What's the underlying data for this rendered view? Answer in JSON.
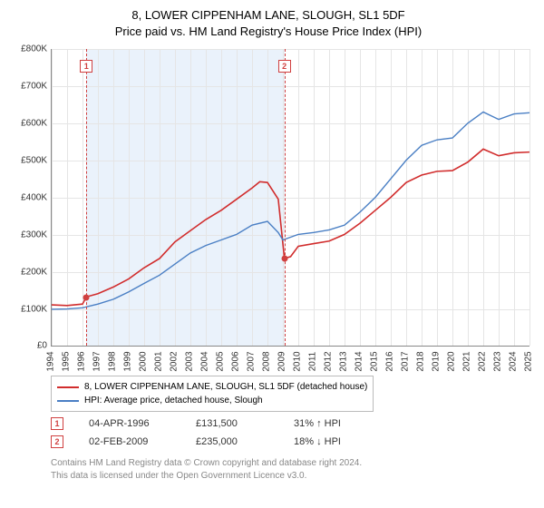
{
  "title": "8, LOWER CIPPENHAM LANE, SLOUGH, SL1 5DF",
  "subtitle": "Price paid vs. HM Land Registry's House Price Index (HPI)",
  "chart": {
    "type": "line",
    "background_color": "#ffffff",
    "grid_color": "#e5e5e5",
    "band_color": "#eaf2fb",
    "axis_color": "#888888",
    "y": {
      "min": 0,
      "max": 800000,
      "tick_step": 100000,
      "tick_labels": [
        "£0",
        "£100K",
        "£200K",
        "£300K",
        "£400K",
        "£500K",
        "£600K",
        "£700K",
        "£800K"
      ],
      "label_fontsize": 10
    },
    "x": {
      "min": 1994,
      "max": 2025,
      "ticks": [
        1994,
        1995,
        1996,
        1997,
        1998,
        1999,
        2000,
        2001,
        2002,
        2003,
        2004,
        2005,
        2006,
        2007,
        2008,
        2009,
        2010,
        2011,
        2012,
        2013,
        2014,
        2015,
        2016,
        2017,
        2018,
        2019,
        2020,
        2021,
        2022,
        2023,
        2024,
        2025
      ],
      "label_fontsize": 10
    },
    "band": {
      "start": 1996.25,
      "end": 2009.1
    },
    "markers": [
      {
        "num": "1",
        "x": 1996.25,
        "y": 131500
      },
      {
        "num": "2",
        "x": 2009.1,
        "y": 235000
      }
    ],
    "series": [
      {
        "name": "price_paid",
        "color": "#d12d2d",
        "line_width": 1.6,
        "label": "8, LOWER CIPPENHAM LANE, SLOUGH, SL1 5DF (detached house)",
        "points": [
          [
            1994,
            110000
          ],
          [
            1995,
            108000
          ],
          [
            1996,
            112000
          ],
          [
            1996.25,
            131500
          ],
          [
            1997,
            140000
          ],
          [
            1998,
            158000
          ],
          [
            1999,
            180000
          ],
          [
            2000,
            210000
          ],
          [
            2001,
            235000
          ],
          [
            2002,
            280000
          ],
          [
            2003,
            310000
          ],
          [
            2004,
            340000
          ],
          [
            2005,
            365000
          ],
          [
            2006,
            395000
          ],
          [
            2007,
            425000
          ],
          [
            2007.5,
            442000
          ],
          [
            2008,
            440000
          ],
          [
            2008.7,
            395000
          ],
          [
            2009.1,
            235000
          ],
          [
            2009.5,
            240000
          ],
          [
            2010,
            268000
          ],
          [
            2011,
            275000
          ],
          [
            2012,
            282000
          ],
          [
            2013,
            300000
          ],
          [
            2014,
            330000
          ],
          [
            2015,
            365000
          ],
          [
            2016,
            400000
          ],
          [
            2017,
            440000
          ],
          [
            2018,
            460000
          ],
          [
            2019,
            470000
          ],
          [
            2020,
            472000
          ],
          [
            2021,
            495000
          ],
          [
            2022,
            530000
          ],
          [
            2023,
            512000
          ],
          [
            2024,
            520000
          ],
          [
            2025,
            522000
          ]
        ]
      },
      {
        "name": "hpi",
        "color": "#4a7fc4",
        "line_width": 1.4,
        "label": "HPI: Average price, detached house, Slough",
        "points": [
          [
            1994,
            98000
          ],
          [
            1995,
            99000
          ],
          [
            1996,
            102000
          ],
          [
            1997,
            112000
          ],
          [
            1998,
            125000
          ],
          [
            1999,
            145000
          ],
          [
            2000,
            168000
          ],
          [
            2001,
            190000
          ],
          [
            2002,
            220000
          ],
          [
            2003,
            250000
          ],
          [
            2004,
            270000
          ],
          [
            2005,
            285000
          ],
          [
            2006,
            300000
          ],
          [
            2007,
            325000
          ],
          [
            2008,
            335000
          ],
          [
            2008.7,
            305000
          ],
          [
            2009,
            285000
          ],
          [
            2010,
            300000
          ],
          [
            2011,
            305000
          ],
          [
            2012,
            312000
          ],
          [
            2013,
            325000
          ],
          [
            2014,
            360000
          ],
          [
            2015,
            400000
          ],
          [
            2016,
            450000
          ],
          [
            2017,
            500000
          ],
          [
            2018,
            540000
          ],
          [
            2019,
            555000
          ],
          [
            2020,
            560000
          ],
          [
            2021,
            600000
          ],
          [
            2022,
            630000
          ],
          [
            2023,
            610000
          ],
          [
            2024,
            625000
          ],
          [
            2025,
            628000
          ]
        ]
      }
    ]
  },
  "legend": {
    "series1": "8, LOWER CIPPENHAM LANE, SLOUGH, SL1 5DF (detached house)",
    "series2": "HPI: Average price, detached house, Slough"
  },
  "events": [
    {
      "num": "1",
      "date": "04-APR-1996",
      "price": "£131,500",
      "delta": "31% ↑ HPI"
    },
    {
      "num": "2",
      "date": "02-FEB-2009",
      "price": "£235,000",
      "delta": "18% ↓ HPI"
    }
  ],
  "footer": {
    "line1": "Contains HM Land Registry data © Crown copyright and database right 2024.",
    "line2": "This data is licensed under the Open Government Licence v3.0."
  }
}
